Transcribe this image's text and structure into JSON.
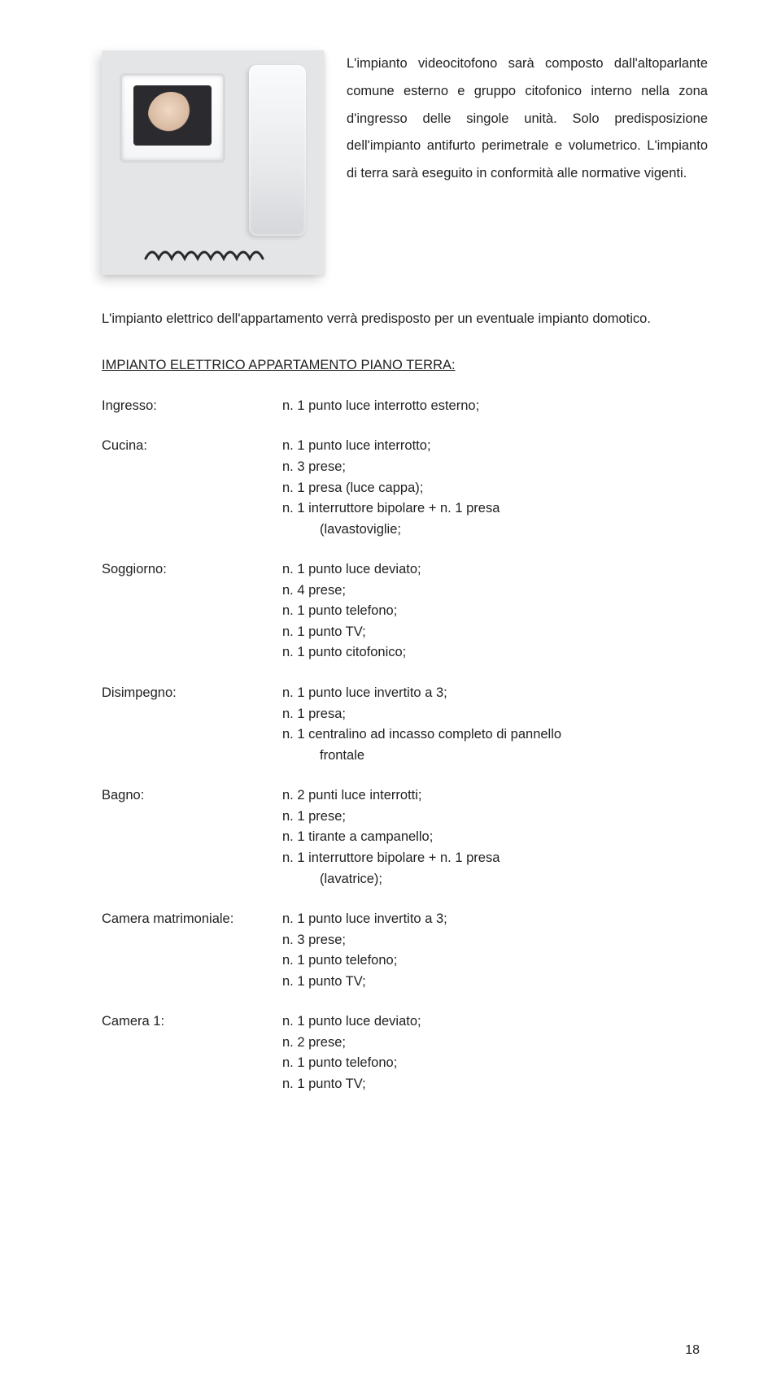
{
  "colors": {
    "text": "#222222",
    "background": "#ffffff"
  },
  "typography": {
    "font_family": "Verdana, Geneva, sans-serif",
    "body_fontsize_pt": 12,
    "line_height_body": 2.05,
    "line_height_list": 1.55
  },
  "intro_right": "L'impianto videocitofono sarà composto dall'altoparlante comune esterno e gruppo citofonico interno nella zona d'ingresso delle singole unità. Solo predisposizione dell'impianto antifurto perimetrale e volumetrico. L'impianto di terra sarà eseguito in conformità alle normative vigenti.",
  "intro_after": "L'impianto elettrico dell'appartamento verrà predisposto per un eventuale impianto domotico.",
  "section_title": "IMPIANTO ELETTRICO APPARTAMENTO PIANO TERRA:",
  "rooms": [
    {
      "label": "Ingresso:",
      "items": [
        {
          "text": "n.  1  punto luce interrotto esterno;"
        }
      ]
    },
    {
      "label": "Cucina:",
      "items": [
        {
          "text": "n.  1  punto luce interrotto;"
        },
        {
          "text": "n.  3  prese;"
        },
        {
          "text": "n.  1  presa (luce cappa);"
        },
        {
          "text": "n.  1  interruttore bipolare + n. 1 presa"
        },
        {
          "text": "(lavastoviglie;",
          "indent": true
        }
      ]
    },
    {
      "label": "Soggiorno:",
      "items": [
        {
          "text": "n.  1  punto luce deviato;"
        },
        {
          "text": "n.  4  prese;"
        },
        {
          "text": "n.  1  punto telefono;"
        },
        {
          "text": "n.  1  punto TV;"
        },
        {
          "text": "n.  1  punto citofonico;"
        }
      ]
    },
    {
      "label": "Disimpegno:",
      "items": [
        {
          "text": "n.  1  punto luce invertito a 3;"
        },
        {
          "text": "n.  1  presa;"
        },
        {
          "text": "n.  1  centralino ad incasso completo di pannello"
        },
        {
          "text": "frontale",
          "indent": true
        }
      ]
    },
    {
      "label": "Bagno:",
      "items": [
        {
          "text": "n.  2  punti luce interrotti;"
        },
        {
          "text": "n.  1  prese;"
        },
        {
          "text": "n.  1  tirante a campanello;"
        },
        {
          "text": "n.  1  interruttore bipolare + n. 1 presa"
        },
        {
          "text": "(lavatrice);",
          "indent": true
        }
      ]
    },
    {
      "label": "Camera matrimoniale:",
      "items": [
        {
          "text": "n.  1  punto luce invertito a 3;"
        },
        {
          "text": "n.  3  prese;"
        },
        {
          "text": "n.  1  punto telefono;"
        },
        {
          "text": "n.  1  punto TV;"
        }
      ]
    },
    {
      "label": "Camera 1:",
      "items": [
        {
          "text": "n.  1  punto luce deviato;"
        },
        {
          "text": "n.  2  prese;"
        },
        {
          "text": "n.  1  punto telefono;"
        },
        {
          "text": "n.  1  punto TV;"
        }
      ]
    }
  ],
  "page_number": "18"
}
